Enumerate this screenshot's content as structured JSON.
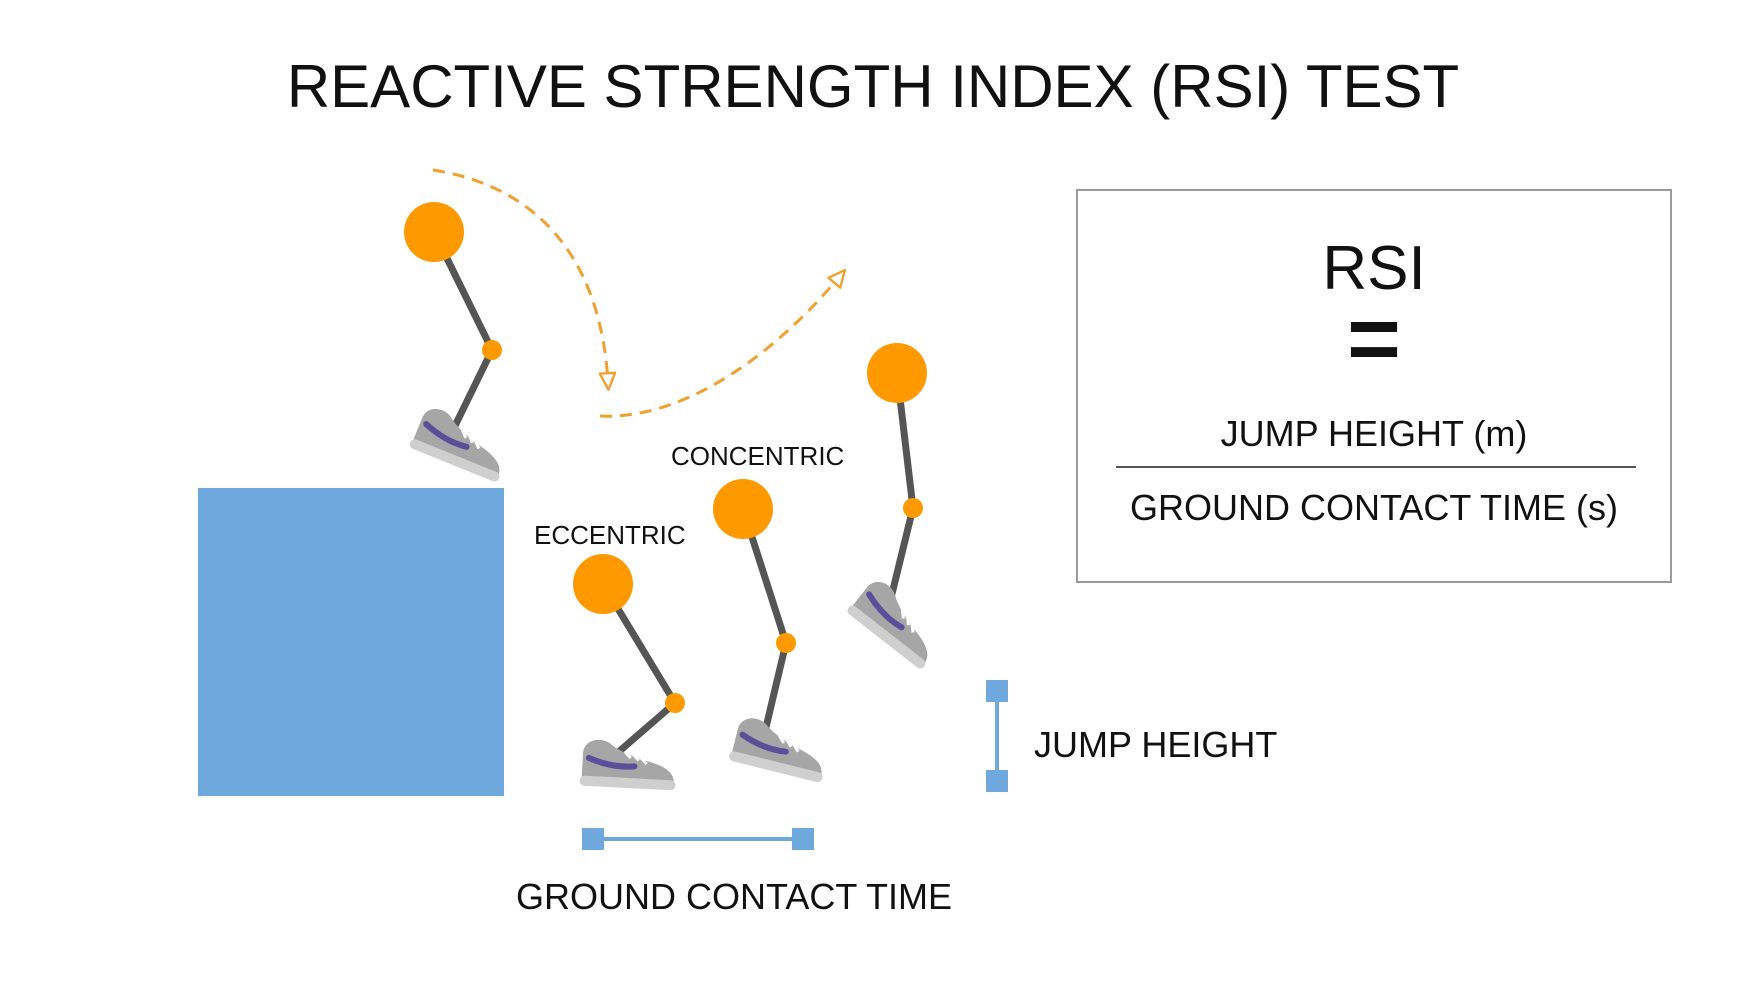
{
  "title": "REACTIVE STRENGTH INDEX (RSI) TEST",
  "labels": {
    "eccentric": "ECCENTRIC",
    "concentric": "CONCENTRIC",
    "jump_height": "JUMP HEIGHT",
    "ground_contact_time": "GROUND CONTACT TIME"
  },
  "formula": {
    "lhs": "RSI",
    "equals": "=",
    "numerator": "JUMP HEIGHT (m)",
    "denominator": "GROUND CONTACT TIME (s)"
  },
  "colors": {
    "box": "#6fa8dc",
    "joint": "#ff9900",
    "limb": "#555555",
    "arrow": "#f0a030",
    "shoe": "#9e9e9e",
    "shoe_stripe": "#5c4f9a",
    "measure": "#6fa8dc"
  }
}
